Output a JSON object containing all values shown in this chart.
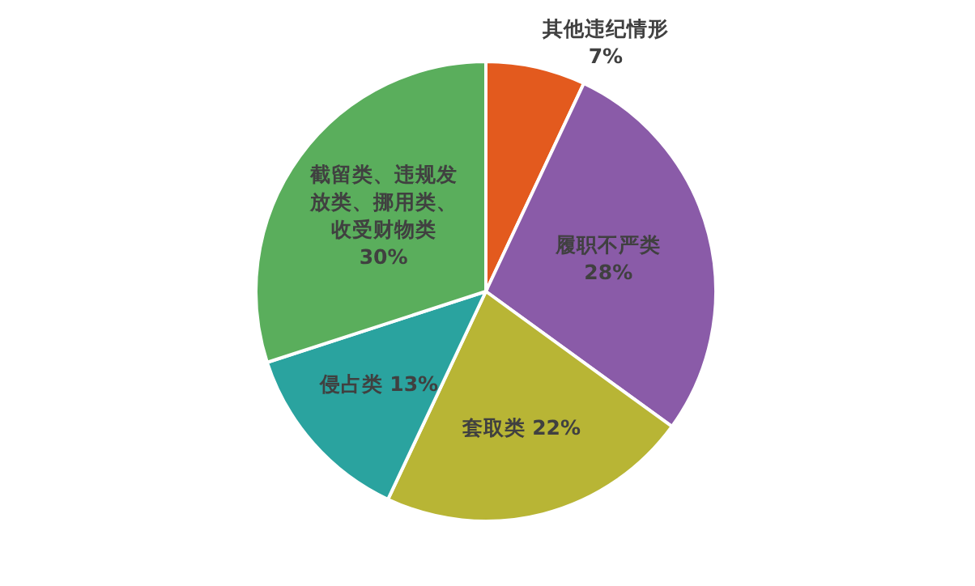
{
  "chart_data": {
    "type": "pie",
    "categories": [
      "其他违纪情形",
      "履职不严类",
      "套取类",
      "侵占类",
      "截留类、违规发放类、挪用类、收受财物类"
    ],
    "values": [
      7,
      28,
      22,
      13,
      30
    ],
    "value_labels": [
      "7%",
      "28%",
      "22%",
      "13%",
      "30%"
    ],
    "colors": [
      "#e35a1e",
      "#8a5ba8",
      "#b8b535",
      "#2aa39f",
      "#5aae5c"
    ]
  }
}
